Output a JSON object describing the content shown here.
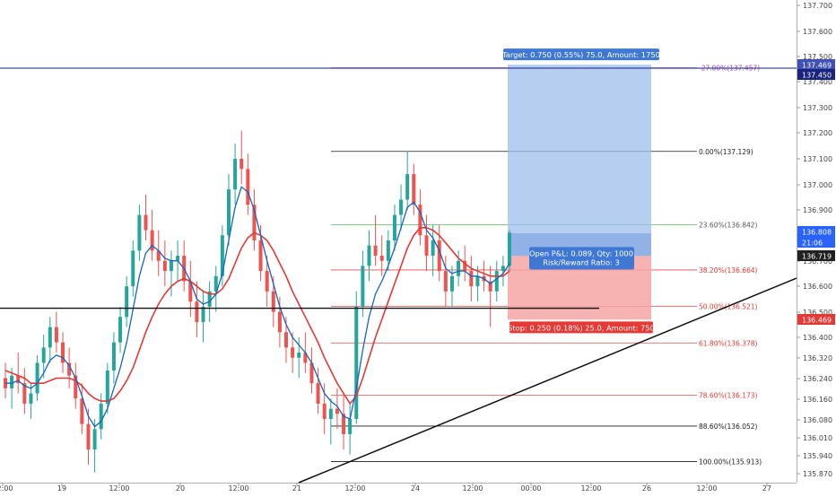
{
  "chart_data": {
    "type": "line",
    "title": "",
    "y_axis": {
      "ticks": [
        "137.700",
        "137.600",
        "137.500",
        "137.400",
        "137.300",
        "137.200",
        "137.100",
        "137.000",
        "136.900",
        "136.800",
        "136.700",
        "136.600",
        "136.500",
        "136.400",
        "136.320",
        "136.240",
        "136.160",
        "136.080",
        "136.010",
        "135.940",
        "135.870"
      ]
    },
    "x_axis": {
      "ticks": [
        "12:00",
        "19",
        "12:00",
        "20",
        "12:00",
        "21",
        "12:00",
        "24",
        "12:00",
        "00:00",
        "12:00",
        "26",
        "12:00",
        "27"
      ]
    },
    "fib_levels": [
      {
        "label": "-27.00%(137.457)",
        "value": 137.457,
        "color": "#ab47bc"
      },
      {
        "label": "0.00%(137.129)",
        "value": 137.129,
        "color": "#000000"
      },
      {
        "label": "23.60%(136.842)",
        "value": 136.842,
        "color": "#4caf50"
      },
      {
        "label": "38.20%(136.664)",
        "value": 136.664,
        "color": "#e53935"
      },
      {
        "label": "50.00%(136.521)",
        "value": 136.521,
        "color": "#e53935"
      },
      {
        "label": "61.80%(136.378)",
        "value": 136.378,
        "color": "#e53935"
      },
      {
        "label": "78.60%(136.173)",
        "value": 136.173,
        "color": "#e53935"
      },
      {
        "label": "88.60%(136.052)",
        "value": 136.052,
        "color": "#000000"
      },
      {
        "label": "100.00%(135.913)",
        "value": 135.913,
        "color": "#000000"
      }
    ],
    "position": {
      "target_label": "Target: 0.750 (0.55%) 75.0, Amount: 1750",
      "stop_label": "Stop: 0.250 (0.18%) 25.0, Amount: 750",
      "pnl_line1": "Open P&L: 0.089, Qty: 1000",
      "pnl_line2": "Risk/Reward Ratio: 3",
      "target_price": 137.469,
      "entry_price": 136.719,
      "stop_price": 136.469
    },
    "price_labels": [
      {
        "text": "137.469",
        "color": "#3f51b5"
      },
      {
        "text": "137.450",
        "color": "#1a237e"
      },
      {
        "text": "136.808",
        "color": "#2962ff"
      },
      {
        "text": "21:06",
        "color": "#2962ff"
      },
      {
        "text": "136.719",
        "color": "#212121"
      },
      {
        "text": "136.469",
        "color": "#e53935"
      }
    ],
    "colors": {
      "up": "#26a69a",
      "down": "#ef5350",
      "ma_fast": "#1565c0",
      "ma_slow": "#e53935",
      "hline": "#3949ab",
      "target_fill": "#9ebeea",
      "stop_fill": "#f6a4a4"
    },
    "ohlc": [
      [
        136.24,
        136.3,
        136.16,
        136.2
      ],
      [
        136.2,
        136.28,
        136.12,
        136.25
      ],
      [
        136.25,
        136.34,
        136.18,
        136.22
      ],
      [
        136.22,
        136.28,
        136.1,
        136.14
      ],
      [
        136.14,
        136.22,
        136.08,
        136.18
      ],
      [
        136.18,
        136.33,
        136.15,
        136.3
      ],
      [
        136.3,
        136.41,
        136.24,
        136.36
      ],
      [
        136.36,
        136.48,
        136.3,
        136.44
      ],
      [
        136.44,
        136.5,
        136.34,
        136.38
      ],
      [
        136.38,
        136.42,
        136.26,
        136.3
      ],
      [
        136.3,
        136.36,
        136.2,
        136.25
      ],
      [
        136.25,
        136.3,
        136.12,
        136.16
      ],
      [
        136.16,
        136.22,
        136.02,
        136.06
      ],
      [
        136.06,
        136.12,
        135.9,
        135.96
      ],
      [
        135.96,
        136.08,
        135.87,
        136.04
      ],
      [
        136.04,
        136.18,
        136.0,
        136.14
      ],
      [
        136.14,
        136.3,
        136.1,
        136.27
      ],
      [
        136.27,
        136.42,
        136.22,
        136.38
      ],
      [
        136.38,
        136.52,
        136.34,
        136.48
      ],
      [
        136.48,
        136.64,
        136.44,
        136.6
      ],
      [
        136.6,
        136.78,
        136.56,
        136.74
      ],
      [
        136.74,
        136.92,
        136.7,
        136.88
      ],
      [
        136.88,
        136.96,
        136.78,
        136.82
      ],
      [
        136.82,
        136.9,
        136.7,
        136.74
      ],
      [
        136.74,
        136.82,
        136.64,
        136.7
      ],
      [
        136.7,
        136.78,
        136.6,
        136.66
      ],
      [
        136.66,
        136.74,
        136.56,
        136.7
      ],
      [
        136.7,
        136.78,
        136.62,
        136.72
      ],
      [
        136.72,
        136.78,
        136.58,
        136.62
      ],
      [
        136.62,
        136.7,
        136.48,
        136.54
      ],
      [
        136.54,
        136.62,
        136.4,
        136.46
      ],
      [
        136.46,
        136.58,
        136.38,
        136.52
      ],
      [
        136.52,
        136.62,
        136.46,
        136.58
      ],
      [
        136.58,
        136.68,
        136.5,
        136.64
      ],
      [
        136.64,
        136.84,
        136.6,
        136.8
      ],
      [
        136.8,
        137.04,
        136.76,
        136.98
      ],
      [
        136.98,
        137.16,
        136.92,
        137.1
      ],
      [
        137.1,
        137.21,
        137.0,
        137.06
      ],
      [
        137.06,
        137.12,
        136.88,
        136.92
      ],
      [
        136.92,
        136.98,
        136.74,
        136.78
      ],
      [
        136.78,
        136.84,
        136.62,
        136.66
      ],
      [
        136.66,
        136.72,
        136.52,
        136.58
      ],
      [
        136.58,
        136.64,
        136.44,
        136.5
      ],
      [
        136.5,
        136.56,
        136.36,
        136.42
      ],
      [
        136.42,
        136.48,
        136.3,
        136.36
      ],
      [
        136.36,
        136.42,
        136.26,
        136.32
      ],
      [
        136.32,
        136.4,
        136.24,
        136.34
      ],
      [
        136.34,
        136.42,
        136.26,
        136.3
      ],
      [
        136.3,
        136.36,
        136.18,
        136.22
      ],
      [
        136.22,
        136.28,
        136.1,
        136.14
      ],
      [
        136.14,
        136.22,
        136.02,
        136.08
      ],
      [
        136.08,
        136.16,
        135.98,
        136.12
      ],
      [
        136.12,
        136.2,
        136.04,
        136.1
      ],
      [
        136.1,
        136.18,
        135.96,
        136.02
      ],
      [
        136.02,
        136.14,
        135.94,
        136.08
      ],
      [
        136.08,
        136.58,
        136.06,
        136.52
      ],
      [
        136.52,
        136.74,
        136.48,
        136.68
      ],
      [
        136.68,
        136.82,
        136.62,
        136.76
      ],
      [
        136.76,
        136.88,
        136.68,
        136.72
      ],
      [
        136.72,
        136.8,
        136.64,
        136.7
      ],
      [
        136.7,
        136.82,
        136.66,
        136.78
      ],
      [
        136.78,
        136.92,
        136.74,
        136.88
      ],
      [
        136.88,
        137.0,
        136.82,
        136.94
      ],
      [
        136.94,
        137.13,
        136.9,
        137.04
      ],
      [
        137.04,
        137.08,
        136.88,
        136.92
      ],
      [
        136.92,
        136.98,
        136.76,
        136.8
      ],
      [
        136.8,
        136.88,
        136.66,
        136.72
      ],
      [
        136.72,
        136.84,
        136.64,
        136.78
      ],
      [
        136.78,
        136.84,
        136.62,
        136.66
      ],
      [
        136.66,
        136.72,
        136.52,
        136.58
      ],
      [
        136.58,
        136.68,
        136.52,
        136.64
      ],
      [
        136.64,
        136.74,
        136.6,
        136.7
      ],
      [
        136.7,
        136.76,
        136.62,
        136.66
      ],
      [
        136.66,
        136.72,
        136.54,
        136.6
      ],
      [
        136.6,
        136.68,
        136.54,
        136.64
      ],
      [
        136.64,
        136.7,
        136.58,
        136.62
      ],
      [
        136.62,
        136.68,
        136.44,
        136.58
      ],
      [
        136.58,
        136.7,
        136.54,
        136.66
      ],
      [
        136.66,
        136.72,
        136.6,
        136.68
      ],
      [
        136.68,
        136.82,
        136.66,
        136.81
      ]
    ],
    "ma_fast": [
      136.22,
      136.22,
      136.23,
      136.21,
      136.2,
      136.22,
      136.26,
      136.31,
      136.33,
      136.32,
      136.29,
      136.24,
      136.17,
      136.09,
      136.05,
      136.07,
      136.12,
      136.2,
      136.28,
      136.38,
      136.51,
      136.64,
      136.73,
      136.76,
      136.74,
      136.71,
      136.7,
      136.7,
      136.67,
      136.62,
      136.55,
      136.53,
      136.54,
      136.57,
      136.65,
      136.78,
      136.91,
      136.99,
      136.97,
      136.9,
      136.8,
      136.7,
      136.61,
      136.52,
      136.45,
      136.4,
      136.37,
      136.34,
      136.3,
      136.24,
      136.18,
      136.15,
      136.13,
      136.09,
      136.08,
      136.2,
      136.35,
      136.48,
      136.57,
      136.62,
      136.68,
      136.75,
      136.83,
      136.91,
      136.93,
      136.89,
      136.82,
      136.79,
      136.74,
      136.67,
      136.65,
      136.66,
      136.66,
      136.64,
      136.64,
      136.63,
      136.61,
      136.63,
      136.65,
      136.69
    ],
    "ma_slow": [
      136.27,
      136.26,
      136.25,
      136.24,
      136.22,
      136.22,
      136.22,
      136.23,
      136.24,
      136.24,
      136.24,
      136.23,
      136.21,
      136.18,
      136.16,
      136.15,
      136.15,
      136.16,
      136.19,
      136.23,
      136.28,
      136.35,
      136.42,
      136.48,
      136.53,
      136.57,
      136.6,
      136.62,
      136.63,
      136.62,
      136.6,
      136.58,
      136.57,
      136.57,
      136.59,
      136.63,
      136.69,
      136.75,
      136.79,
      136.81,
      136.8,
      136.78,
      136.74,
      136.69,
      136.64,
      136.58,
      136.53,
      136.48,
      136.43,
      136.38,
      136.32,
      136.27,
      136.22,
      136.18,
      136.14,
      136.17,
      136.24,
      136.32,
      136.4,
      136.47,
      136.54,
      136.61,
      136.68,
      136.75,
      136.8,
      136.83,
      136.83,
      136.82,
      136.8,
      136.77,
      136.74,
      136.71,
      136.69,
      136.67,
      136.66,
      136.65,
      136.64,
      136.64,
      136.64,
      136.66
    ]
  }
}
